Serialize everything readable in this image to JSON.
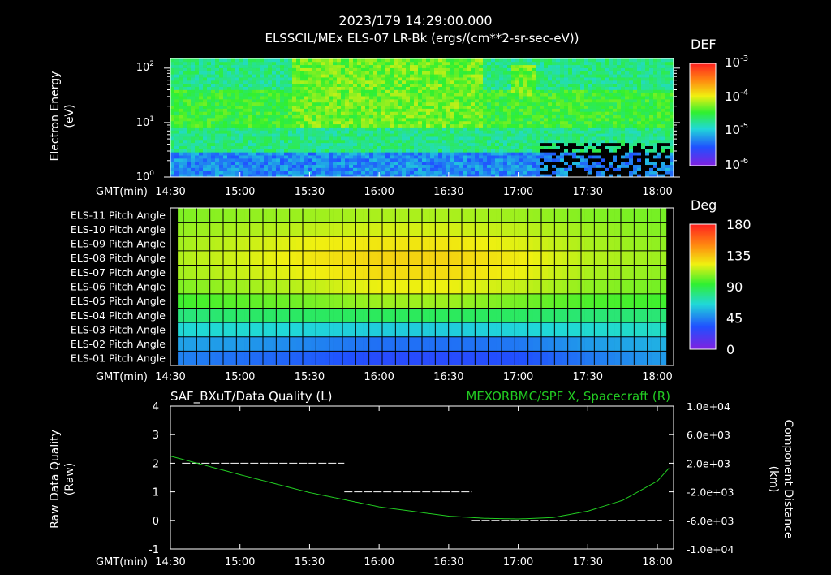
{
  "header": {
    "timestamp": "2023/179 14:29:00.000",
    "subtitle": "ELSSCIL/MEx ELS-07 LR-Bk  (ergs/(cm**2-sr-sec-eV))"
  },
  "chart_data": [
    {
      "type": "heatmap",
      "id": "energy-spectrogram",
      "ylabel": "Electron Energy",
      "ylabel_unit": "(eV)",
      "yscale": "log",
      "ylim": [
        1,
        150
      ],
      "y_ticks": [
        {
          "base": "10",
          "exp": "0",
          "value": 1
        },
        {
          "base": "10",
          "exp": "1",
          "value": 10
        },
        {
          "base": "10",
          "exp": "2",
          "value": 100
        }
      ],
      "x_axis_label": "GMT(min)",
      "x_ticks": [
        "14:30",
        "15:00",
        "15:30",
        "16:00",
        "16:30",
        "17:00",
        "17:30",
        "18:00"
      ],
      "colorbar": {
        "title": "DEF",
        "scale": "log",
        "ticks": [
          {
            "base": "10",
            "exp": "-3"
          },
          {
            "base": "10",
            "exp": "-4"
          },
          {
            "base": "10",
            "exp": "-5"
          },
          {
            "base": "10",
            "exp": "-6"
          }
        ]
      },
      "features": [
        {
          "time_start": "15:23",
          "time_end": "16:45",
          "energy_low_eV": 8,
          "energy_high_eV": 150,
          "level": "high"
        },
        {
          "time_start": "16:57",
          "time_end": "17:07",
          "energy_low_eV": 30,
          "energy_high_eV": 120,
          "level": "high"
        },
        {
          "time_start": "17:10",
          "time_end": "18:05",
          "energy_low_eV": 1,
          "energy_high_eV": 4,
          "level": "no data"
        }
      ]
    },
    {
      "type": "heatmap",
      "id": "pitch-angle",
      "rows": [
        "ELS-11 Pitch Angle",
        "ELS-10 Pitch Angle",
        "ELS-09 Pitch Angle",
        "ELS-08 Pitch Angle",
        "ELS-07 Pitch Angle",
        "ELS-06 Pitch Angle",
        "ELS-05 Pitch Angle",
        "ELS-04 Pitch Angle",
        "ELS-03 Pitch Angle",
        "ELS-02 Pitch Angle",
        "ELS-01 Pitch Angle"
      ],
      "time_columns": [
        "14:30",
        "15:00",
        "15:30",
        "16:00",
        "16:30",
        "17:00",
        "17:30",
        "18:00"
      ],
      "values_deg": [
        [
          105,
          108,
          110,
          112,
          112,
          110,
          106,
          104
        ],
        [
          108,
          112,
          115,
          118,
          118,
          115,
          110,
          106
        ],
        [
          110,
          116,
          122,
          125,
          125,
          120,
          112,
          108
        ],
        [
          112,
          118,
          125,
          130,
          130,
          124,
          114,
          110
        ],
        [
          110,
          116,
          122,
          128,
          128,
          122,
          112,
          108
        ],
        [
          105,
          110,
          115,
          122,
          122,
          116,
          108,
          104
        ],
        [
          95,
          100,
          104,
          110,
          110,
          104,
          98,
          96
        ],
        [
          80,
          84,
          85,
          86,
          86,
          85,
          82,
          82
        ],
        [
          65,
          66,
          64,
          62,
          62,
          64,
          66,
          68
        ],
        [
          52,
          50,
          45,
          40,
          40,
          42,
          50,
          55
        ],
        [
          45,
          40,
          36,
          30,
          30,
          32,
          42,
          50
        ]
      ],
      "x_axis_label": "GMT(min)",
      "x_ticks": [
        "14:30",
        "15:00",
        "15:30",
        "16:00",
        "16:30",
        "17:00",
        "17:30",
        "18:00"
      ],
      "colorbar": {
        "title": "Deg",
        "ticks": [
          "180",
          "135",
          "90",
          "45",
          "0"
        ],
        "range": [
          0,
          180
        ]
      }
    },
    {
      "type": "line",
      "id": "quality-and-distance",
      "title_left": "SAF_BXuT/Data Quality (L)",
      "title_right": "MEXORBMC/SPF X, Spacecraft (R)",
      "ylabel_left": "Raw Data Quality",
      "ylabel_left_unit": "(Raw)",
      "ylabel_right": "Component Distance",
      "ylabel_right_unit": "(km)",
      "ylim_left": [
        -1,
        4
      ],
      "y_ticks_left": [
        "4",
        "3",
        "2",
        "1",
        "0",
        "-1"
      ],
      "ylim_right": [
        -10000,
        10000
      ],
      "y_ticks_right": [
        "1.0e+04",
        "6.0e+03",
        "2.0e+03",
        "-2.0e+03",
        "-6.0e+03",
        "-1.0e+04"
      ],
      "x_axis_label": "GMT(min)",
      "x_ticks": [
        "14:30",
        "15:00",
        "15:30",
        "16:00",
        "16:30",
        "17:00",
        "17:30",
        "18:00"
      ],
      "series": [
        {
          "name": "SAF_BXuT/Data Quality",
          "color": "#ffffff",
          "segments": [
            {
              "start": "14:35",
              "end": "15:45",
              "value": 2
            },
            {
              "start": "15:45",
              "end": "16:40",
              "value": 1
            },
            {
              "start": "16:40",
              "end": "18:02",
              "value": 0
            }
          ]
        },
        {
          "name": "MEXORBMC/SPF X, Spacecraft",
          "color": "#22cc22",
          "x": [
            "14:30",
            "15:00",
            "15:30",
            "16:00",
            "16:30",
            "16:45",
            "17:00",
            "17:15",
            "17:30",
            "17:45",
            "18:00",
            "18:05"
          ],
          "y": [
            3000,
            400,
            -2100,
            -4100,
            -5400,
            -5700,
            -5800,
            -5600,
            -4700,
            -3200,
            -500,
            1300
          ]
        }
      ]
    }
  ]
}
